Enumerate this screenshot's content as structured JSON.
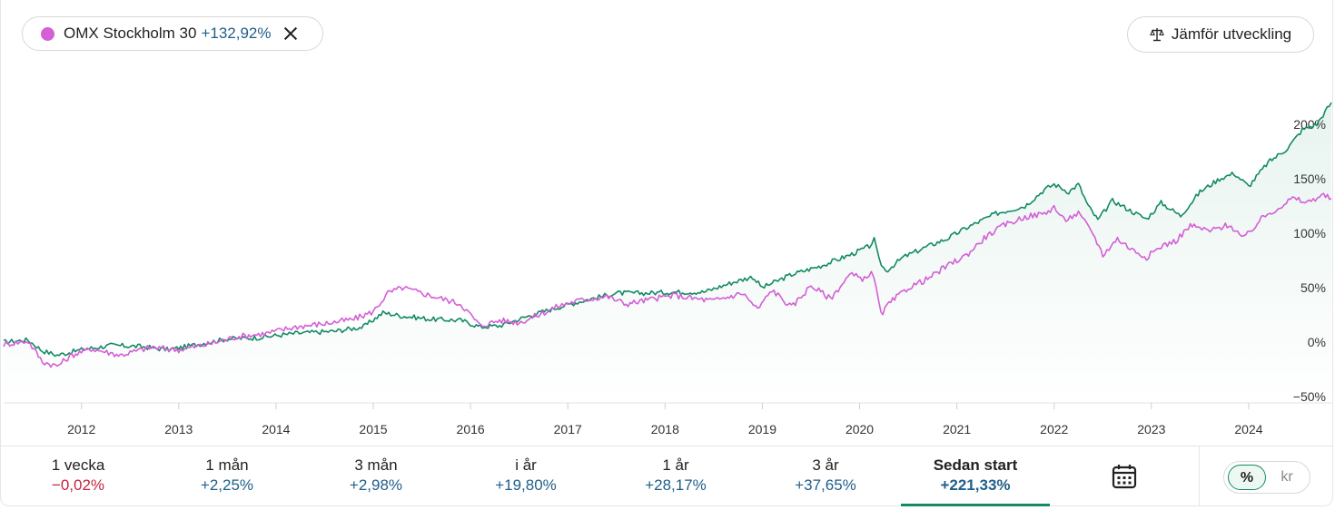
{
  "legend": {
    "name": "OMX Stockholm 30",
    "change": "+132,92%",
    "dot_color": "#d45fd6",
    "remove_icon": "close-icon"
  },
  "compare_button": {
    "label": "Jämför utveckling",
    "icon": "scale-icon"
  },
  "periods": [
    {
      "label": "1 vecka",
      "value": "−0,02%",
      "negative": true
    },
    {
      "label": "1 mån",
      "value": "+2,25%"
    },
    {
      "label": "3 mån",
      "value": "+2,98%"
    },
    {
      "label": "i år",
      "value": "+19,80%"
    },
    {
      "label": "1 år",
      "value": "+28,17%"
    },
    {
      "label": "3 år",
      "value": "+37,65%"
    },
    {
      "label": "Sedan start",
      "value": "+221,33%",
      "active": true
    }
  ],
  "calendar_icon": "calendar-icon",
  "unit_toggle": {
    "percent": "%",
    "currency": "kr",
    "selected": "%"
  },
  "chart_data": {
    "type": "line",
    "title": "",
    "xlabel": "",
    "ylabel": "",
    "x_ticks": [
      "2012",
      "2013",
      "2014",
      "2015",
      "2016",
      "2017",
      "2018",
      "2019",
      "2020",
      "2021",
      "2022",
      "2023",
      "2024"
    ],
    "y_ticks": [
      "−50%",
      "0%",
      "50%",
      "100%",
      "150%",
      "200%"
    ],
    "y_tick_values": [
      -50,
      0,
      50,
      100,
      150,
      200
    ],
    "xlim": [
      2011.2,
      2024.85
    ],
    "ylim": [
      -55,
      225
    ],
    "grid": false,
    "series": [
      {
        "color": "#138a65",
        "area_fill": true,
        "points": [
          [
            2011.2,
            0
          ],
          [
            2011.45,
            2
          ],
          [
            2011.6,
            -8
          ],
          [
            2011.75,
            -12
          ],
          [
            2012.0,
            -7
          ],
          [
            2012.3,
            -3
          ],
          [
            2012.6,
            -4
          ],
          [
            2012.9,
            -7
          ],
          [
            2013.2,
            -2
          ],
          [
            2013.5,
            3
          ],
          [
            2013.8,
            4
          ],
          [
            2014.2,
            8
          ],
          [
            2014.6,
            10
          ],
          [
            2014.9,
            14
          ],
          [
            2015.1,
            27
          ],
          [
            2015.3,
            24
          ],
          [
            2015.6,
            21
          ],
          [
            2015.9,
            20
          ],
          [
            2016.1,
            14
          ],
          [
            2016.3,
            15
          ],
          [
            2016.6,
            24
          ],
          [
            2016.9,
            32
          ],
          [
            2017.2,
            39
          ],
          [
            2017.5,
            45
          ],
          [
            2017.8,
            45
          ],
          [
            2018.1,
            46
          ],
          [
            2018.4,
            46
          ],
          [
            2018.7,
            55
          ],
          [
            2018.9,
            60
          ],
          [
            2019.0,
            50
          ],
          [
            2019.3,
            62
          ],
          [
            2019.6,
            70
          ],
          [
            2019.9,
            80
          ],
          [
            2020.1,
            88
          ],
          [
            2020.15,
            94
          ],
          [
            2020.2,
            75
          ],
          [
            2020.27,
            65
          ],
          [
            2020.45,
            78
          ],
          [
            2020.7,
            88
          ],
          [
            2020.9,
            95
          ],
          [
            2021.1,
            105
          ],
          [
            2021.4,
            118
          ],
          [
            2021.7,
            125
          ],
          [
            2021.9,
            140
          ],
          [
            2022.0,
            145
          ],
          [
            2022.15,
            138
          ],
          [
            2022.25,
            145
          ],
          [
            2022.35,
            125
          ],
          [
            2022.45,
            112
          ],
          [
            2022.6,
            130
          ],
          [
            2022.8,
            120
          ],
          [
            2022.95,
            113
          ],
          [
            2023.1,
            128
          ],
          [
            2023.3,
            116
          ],
          [
            2023.5,
            138
          ],
          [
            2023.7,
            150
          ],
          [
            2023.85,
            155
          ],
          [
            2024.0,
            143
          ],
          [
            2024.2,
            165
          ],
          [
            2024.4,
            178
          ],
          [
            2024.55,
            195
          ],
          [
            2024.7,
            200
          ],
          [
            2024.85,
            220
          ]
        ]
      },
      {
        "color": "#d45fd6",
        "area_fill": false,
        "points": [
          [
            2011.2,
            -2
          ],
          [
            2011.45,
            1
          ],
          [
            2011.6,
            -18
          ],
          [
            2011.75,
            -22
          ],
          [
            2011.9,
            -12
          ],
          [
            2012.1,
            -6
          ],
          [
            2012.4,
            -12
          ],
          [
            2012.7,
            -5
          ],
          [
            2013.0,
            -7
          ],
          [
            2013.3,
            -2
          ],
          [
            2013.6,
            5
          ],
          [
            2013.9,
            8
          ],
          [
            2014.2,
            14
          ],
          [
            2014.5,
            17
          ],
          [
            2014.8,
            21
          ],
          [
            2015.0,
            28
          ],
          [
            2015.15,
            45
          ],
          [
            2015.3,
            50
          ],
          [
            2015.5,
            45
          ],
          [
            2015.7,
            40
          ],
          [
            2015.9,
            35
          ],
          [
            2016.1,
            15
          ],
          [
            2016.3,
            20
          ],
          [
            2016.5,
            18
          ],
          [
            2016.7,
            25
          ],
          [
            2016.9,
            33
          ],
          [
            2017.1,
            38
          ],
          [
            2017.4,
            42
          ],
          [
            2017.6,
            35
          ],
          [
            2017.9,
            40
          ],
          [
            2018.1,
            43
          ],
          [
            2018.3,
            40
          ],
          [
            2018.5,
            38
          ],
          [
            2018.8,
            45
          ],
          [
            2018.95,
            30
          ],
          [
            2019.1,
            48
          ],
          [
            2019.3,
            32
          ],
          [
            2019.5,
            52
          ],
          [
            2019.7,
            40
          ],
          [
            2019.9,
            62
          ],
          [
            2020.05,
            58
          ],
          [
            2020.12,
            65
          ],
          [
            2020.17,
            50
          ],
          [
            2020.22,
            25
          ],
          [
            2020.3,
            35
          ],
          [
            2020.5,
            50
          ],
          [
            2020.7,
            58
          ],
          [
            2020.9,
            70
          ],
          [
            2021.1,
            80
          ],
          [
            2021.3,
            97
          ],
          [
            2021.5,
            108
          ],
          [
            2021.7,
            115
          ],
          [
            2021.9,
            118
          ],
          [
            2022.0,
            124
          ],
          [
            2022.1,
            112
          ],
          [
            2022.25,
            118
          ],
          [
            2022.4,
            100
          ],
          [
            2022.5,
            80
          ],
          [
            2022.65,
            95
          ],
          [
            2022.8,
            85
          ],
          [
            2022.95,
            78
          ],
          [
            2023.1,
            88
          ],
          [
            2023.25,
            93
          ],
          [
            2023.4,
            107
          ],
          [
            2023.6,
            102
          ],
          [
            2023.8,
            108
          ],
          [
            2023.95,
            95
          ],
          [
            2024.15,
            115
          ],
          [
            2024.3,
            123
          ],
          [
            2024.45,
            132
          ],
          [
            2024.6,
            128
          ],
          [
            2024.75,
            135
          ],
          [
            2024.85,
            132
          ]
        ]
      }
    ]
  }
}
